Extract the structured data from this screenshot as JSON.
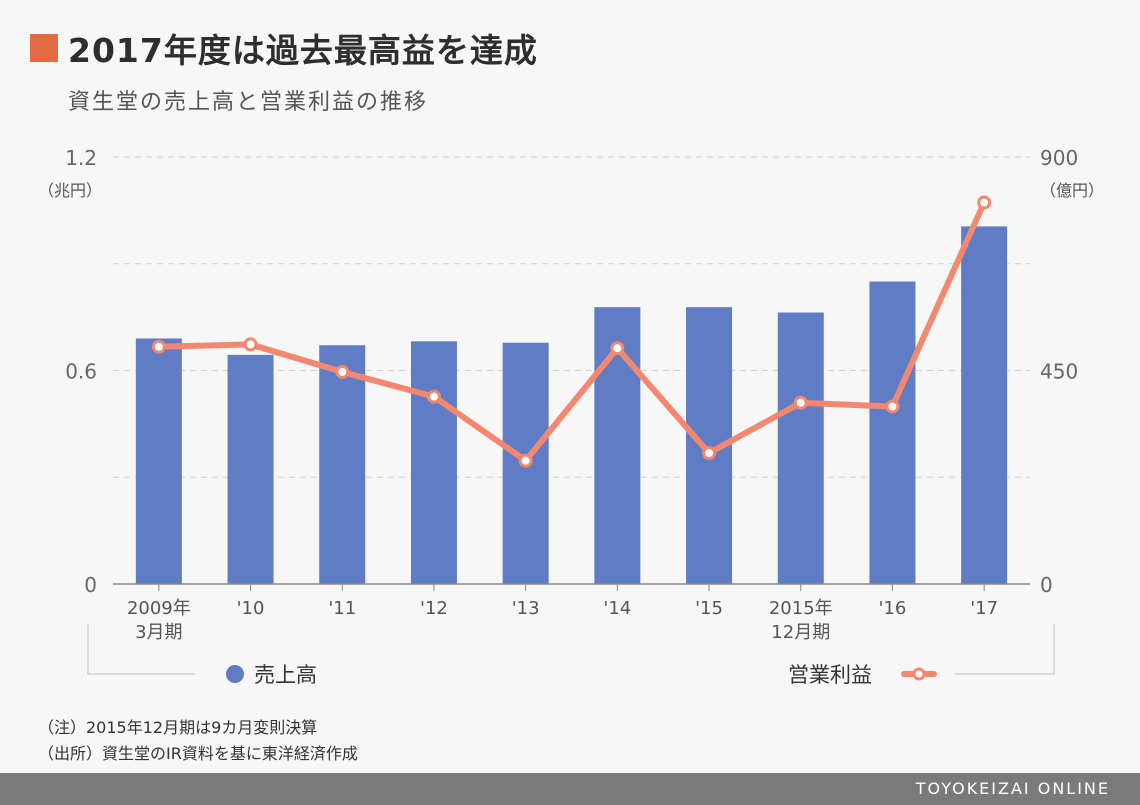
{
  "header": {
    "title": "2017年度は過去最高益を達成",
    "subtitle": "資生堂の売上高と営業利益の推移",
    "accent": "#e36a43"
  },
  "chart_data": {
    "type": "bar",
    "categories": [
      "2009年\n3月期",
      "'10",
      "'11",
      "'12",
      "'13",
      "'14",
      "'15",
      "2015年\n12月期",
      "'16",
      "'17"
    ],
    "series": [
      {
        "name": "売上高",
        "type": "bar",
        "axis": "left",
        "color": "#5f7cc4",
        "values": [
          0.69,
          0.644,
          0.671,
          0.682,
          0.678,
          0.778,
          0.778,
          0.763,
          0.85,
          1.005
        ]
      },
      {
        "name": "営業利益",
        "type": "line",
        "axis": "right",
        "color": "#f4876f",
        "values": [
          500,
          505,
          447,
          395,
          260,
          497,
          276,
          382,
          374,
          804
        ]
      }
    ],
    "y_left": {
      "ticks": [
        "0",
        "0.6",
        "1.2"
      ],
      "unit": "（兆円）",
      "range": [
        0,
        1.2
      ]
    },
    "y_right": {
      "ticks": [
        "0",
        "450",
        "900"
      ],
      "unit": "（億円）",
      "range": [
        0,
        900
      ]
    },
    "legend": "bottom"
  },
  "notes": [
    "（注）2015年12月期は9カ月変則決算",
    "（出所）資生堂のIR資料を基に東洋経済作成"
  ],
  "footer": {
    "brand": "TOYOKEIZAI ONLINE"
  }
}
